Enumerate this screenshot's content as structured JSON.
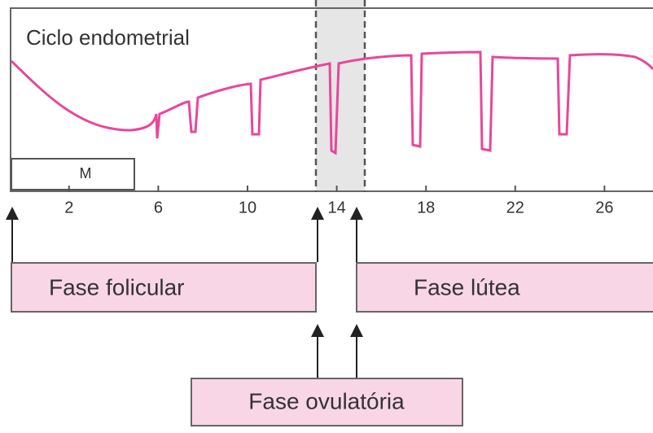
{
  "title": "Ciclo endometrial",
  "menstruation_label": "M",
  "day_ticks": [
    2,
    6,
    10,
    14,
    18,
    22,
    26
  ],
  "phases": {
    "follicular": "Fase folicular",
    "luteal": "Fase lútea",
    "ovulatory": "Fase ovulatória"
  }
}
